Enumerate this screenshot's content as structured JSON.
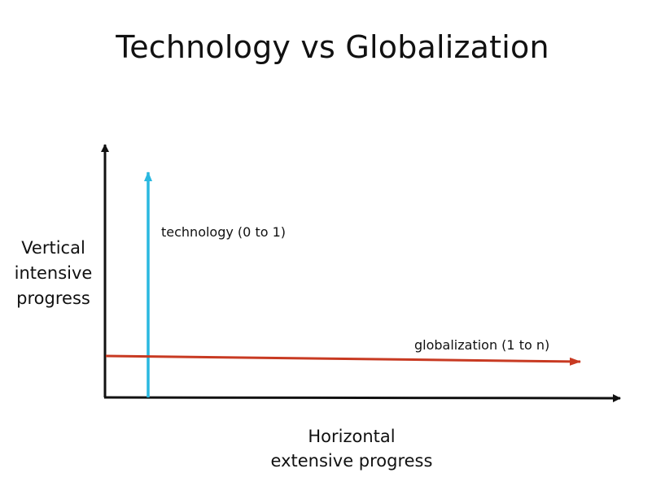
{
  "title": "Technology vs Globalization",
  "y_axis": {
    "line1": "Vertical",
    "line2": "intensive",
    "line3": "progress"
  },
  "x_axis": {
    "line1": "Horizontal",
    "line2": "extensive progress"
  },
  "arrows": {
    "technology": {
      "label": "technology (0 to 1)",
      "color": "#29b8e0"
    },
    "globalization": {
      "label": "globalization (1 to n)",
      "color": "#c83a22"
    }
  },
  "axis_color": "#111111"
}
